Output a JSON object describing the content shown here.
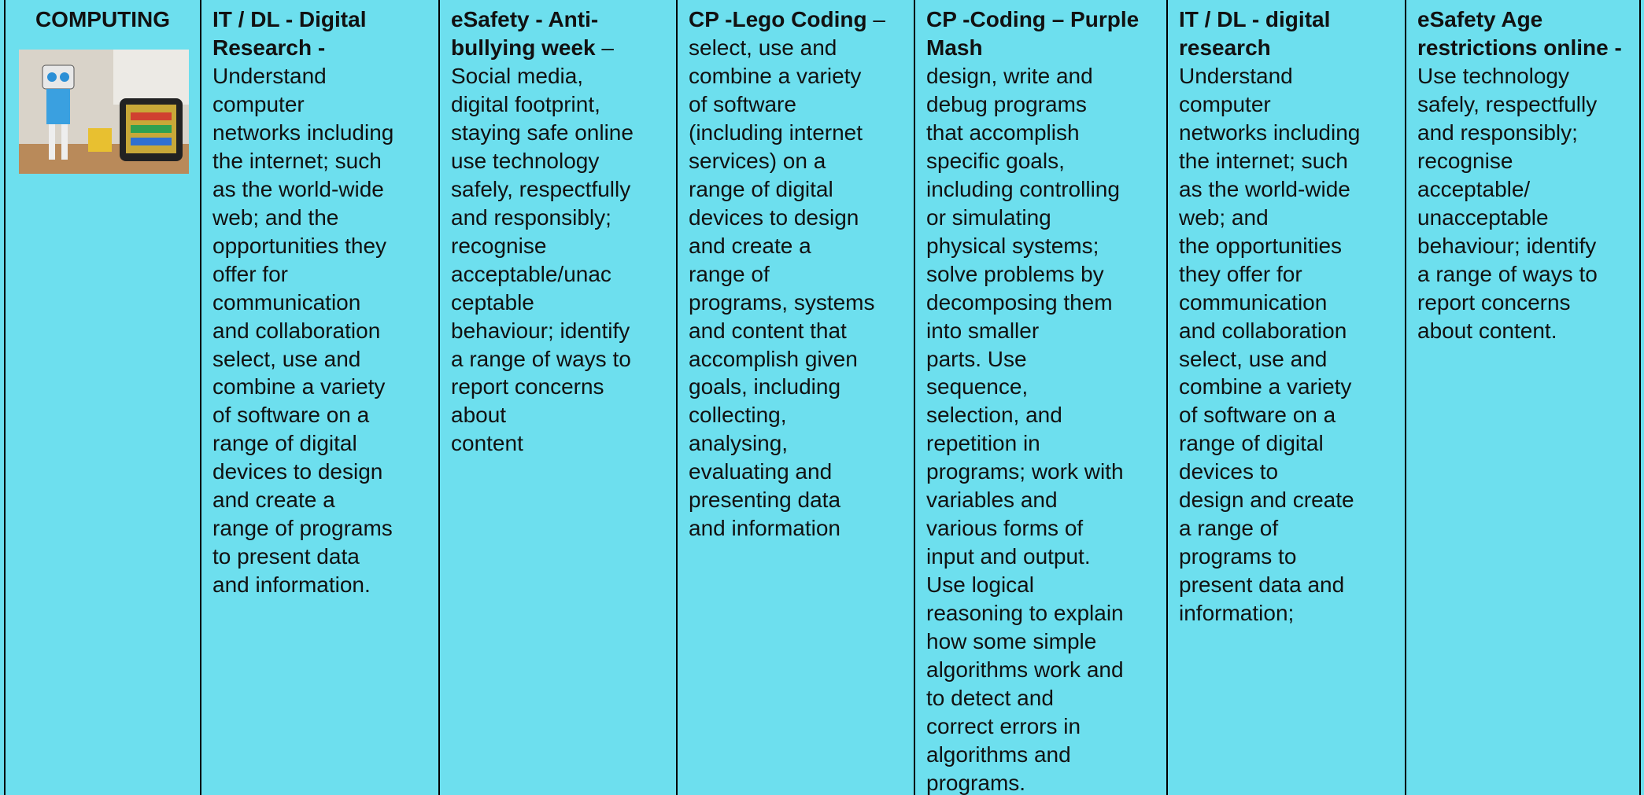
{
  "table": {
    "columns": [
      {
        "lines": [
          {
            "bold": "COMPUTING"
          }
        ]
      },
      {
        "lines": [
          {
            "bold": "IT / DL - Digital"
          },
          {
            "bold": "Research -"
          },
          {
            "text": "Understand"
          },
          {
            "text": "computer"
          },
          {
            "text": "networks including"
          },
          {
            "text": "the internet; such"
          },
          {
            "text": "as the world-wide"
          },
          {
            "text": "web; and the"
          },
          {
            "text": "opportunities they"
          },
          {
            "text": "offer for"
          },
          {
            "text": "communication"
          },
          {
            "text": "and collaboration"
          },
          {
            "text": "select, use and"
          },
          {
            "text": "combine a variety"
          },
          {
            "text": "of software on a"
          },
          {
            "text": "range of digital"
          },
          {
            "text": "devices to design"
          },
          {
            "text": "and create a"
          },
          {
            "text": "range of programs"
          },
          {
            "text": "to present data"
          },
          {
            "text": "and information."
          }
        ]
      },
      {
        "lines": [
          {
            "bold": "eSafety - Anti-"
          },
          {
            "bold": "bullying week",
            "text": " –"
          },
          {
            "text": "Social media,"
          },
          {
            "text": "digital footprint,"
          },
          {
            "text": "staying safe online"
          },
          {
            "text": "use technology"
          },
          {
            "text": "safely, respectfully"
          },
          {
            "text": "and responsibly;"
          },
          {
            "text": "recognise"
          },
          {
            "text": "acceptable/unac"
          },
          {
            "text": "ceptable"
          },
          {
            "text": "behaviour; identify"
          },
          {
            "text": "a range of ways to"
          },
          {
            "text": "report concerns"
          },
          {
            "text": "about"
          },
          {
            "text": "content"
          }
        ]
      },
      {
        "lines": [
          {
            "bold": "CP -Lego Coding",
            "text": " –"
          },
          {
            "text": "select, use and"
          },
          {
            "text": "combine a variety"
          },
          {
            "text": "of software"
          },
          {
            "text": "(including internet"
          },
          {
            "text": "services) on a"
          },
          {
            "text": "range of digital"
          },
          {
            "text": "devices to design"
          },
          {
            "text": "and create a"
          },
          {
            "text": "range of"
          },
          {
            "text": "programs, systems"
          },
          {
            "text": "and content that"
          },
          {
            "text": "accomplish given"
          },
          {
            "text": "goals, including"
          },
          {
            "text": "collecting,"
          },
          {
            "text": "analysing,"
          },
          {
            "text": "evaluating and"
          },
          {
            "text": "presenting data"
          },
          {
            "text": "and information"
          }
        ]
      },
      {
        "lines": [
          {
            "bold": "CP -Coding – Purple"
          },
          {
            "bold": "Mash"
          },
          {
            "text": "design, write and"
          },
          {
            "text": "debug programs"
          },
          {
            "text": "that accomplish"
          },
          {
            "text": "specific goals,"
          },
          {
            "text": "including controlling"
          },
          {
            "text": "or simulating"
          },
          {
            "text": "physical systems;"
          },
          {
            "text": "solve problems by"
          },
          {
            "text": "decomposing them"
          },
          {
            "text": "into smaller"
          },
          {
            "text": "parts. Use"
          },
          {
            "text": "sequence,"
          },
          {
            "text": "selection, and"
          },
          {
            "text": "repetition in"
          },
          {
            "text": "programs; work with"
          },
          {
            "text": "variables and"
          },
          {
            "text": "various forms of"
          },
          {
            "text": "input and output."
          },
          {
            "text": "Use logical"
          },
          {
            "text": "reasoning to explain"
          },
          {
            "text": "how some simple"
          },
          {
            "text": "algorithms work and"
          },
          {
            "text": "to detect and"
          },
          {
            "text": "correct errors in"
          },
          {
            "text": "algorithms and"
          },
          {
            "text": "programs."
          }
        ]
      },
      {
        "lines": [
          {
            "bold": "IT / DL - digital"
          },
          {
            "bold": "research"
          },
          {
            "text": "Understand"
          },
          {
            "text": "computer"
          },
          {
            "text": "networks including"
          },
          {
            "text": "the internet; such"
          },
          {
            "text": "as the world-wide"
          },
          {
            "text": "web; and"
          },
          {
            "text": "the opportunities"
          },
          {
            "text": "they offer for"
          },
          {
            "text": "communication"
          },
          {
            "text": "and collaboration"
          },
          {
            "text": "select, use and"
          },
          {
            "text": "combine a variety"
          },
          {
            "text": "of software on a"
          },
          {
            "text": "range of digital"
          },
          {
            "text": "devices to"
          },
          {
            "text": "design and create"
          },
          {
            "text": "a range of"
          },
          {
            "text": "programs to"
          },
          {
            "text": "present data and"
          },
          {
            "text": "information;"
          }
        ]
      },
      {
        "lines": [
          {
            "bold": "eSafety Age"
          },
          {
            "bold": "restrictions online -"
          },
          {
            "text": "Use technology"
          },
          {
            "text": "safely, respectfully"
          },
          {
            "text": "and responsibly;"
          },
          {
            "text": "recognise"
          },
          {
            "text": "acceptable/"
          },
          {
            "text": "unacceptable"
          },
          {
            "text": "behaviour; identify"
          },
          {
            "text": "a range of ways to"
          },
          {
            "text": "report concerns"
          },
          {
            "text": "about content."
          }
        ]
      }
    ]
  }
}
